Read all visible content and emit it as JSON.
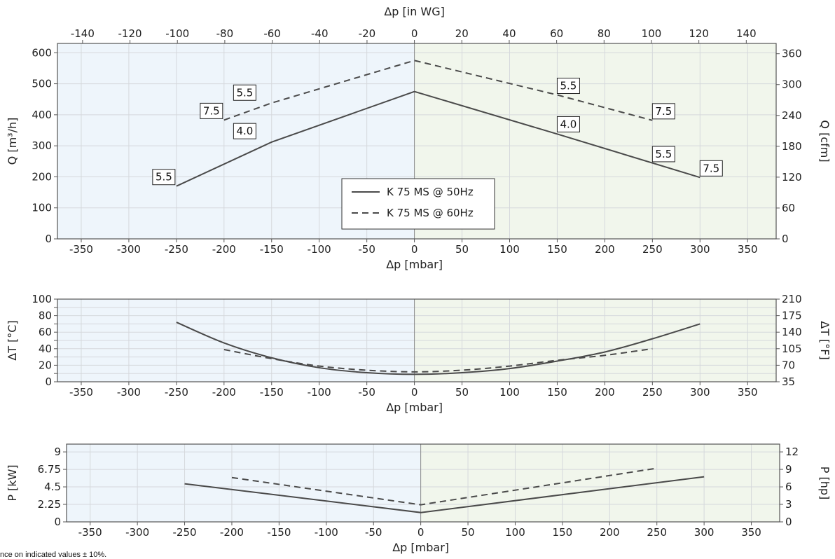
{
  "note": "nce on indicated values ± 10%.",
  "legend": [
    {
      "label": "K 75 MS @ 50Hz",
      "style": "solid"
    },
    {
      "label": "K 75 MS @ 60Hz",
      "style": "dashed"
    }
  ],
  "colors": {
    "line": "#4a4a4a",
    "left_bg": "#eef5fb",
    "right_bg": "#f1f6ec",
    "grid": "#d5d8dc",
    "frame": "#555555"
  },
  "chart_data": [
    {
      "type": "line",
      "xlabel": "Δp [mbar]",
      "ylabel": "Q [m³/h]",
      "xlabel_top": "Δp [in WG]",
      "ylabel_right": "Q [cfm]",
      "xlim": [
        -375,
        380
      ],
      "ylim": [
        0,
        630
      ],
      "x_ticks": [
        -350,
        -300,
        -250,
        -200,
        -150,
        -100,
        -50,
        0,
        50,
        100,
        150,
        200,
        250,
        300,
        350
      ],
      "y_ticks": [
        0,
        100,
        200,
        300,
        400,
        500,
        600
      ],
      "x_top_ticks": [
        -140,
        -120,
        -100,
        -80,
        -60,
        -40,
        -20,
        0,
        20,
        40,
        60,
        80,
        100,
        120,
        140
      ],
      "y_right_ticks": [
        0,
        60,
        120,
        180,
        240,
        300,
        360
      ],
      "grid": true,
      "legend_position": "bottom-center",
      "series": [
        {
          "name": "K 75 MS @ 50Hz",
          "style": "solid",
          "x": [
            -250,
            -150,
            0,
            150,
            300
          ],
          "y": [
            170,
            312,
            475,
            338,
            198
          ]
        },
        {
          "name": "K 75 MS @ 60Hz",
          "style": "dashed",
          "x": [
            -200,
            -150,
            0,
            150,
            250
          ],
          "y": [
            383,
            438,
            575,
            464,
            382
          ]
        }
      ],
      "annotations": [
        {
          "text": "5.5",
          "x": -250,
          "y": 170
        },
        {
          "text": "4.0",
          "x": -165,
          "y": 318
        },
        {
          "text": "7.5",
          "x": -200,
          "y": 383
        },
        {
          "text": "5.5",
          "x": -165,
          "y": 442
        },
        {
          "text": "4.0",
          "x": 150,
          "y": 340
        },
        {
          "text": "5.5",
          "x": 250,
          "y": 244
        },
        {
          "text": "7.5",
          "x": 300,
          "y": 198
        },
        {
          "text": "5.5",
          "x": 150,
          "y": 464
        },
        {
          "text": "7.5",
          "x": 250,
          "y": 382
        }
      ]
    },
    {
      "type": "line",
      "xlabel": "Δp [mbar]",
      "ylabel": "ΔT [°C]",
      "ylabel_right": "ΔT [°F]",
      "xlim": [
        -375,
        380
      ],
      "ylim": [
        0,
        100
      ],
      "x_ticks": [
        -350,
        -300,
        -250,
        -200,
        -150,
        -100,
        -50,
        0,
        50,
        100,
        150,
        200,
        250,
        300,
        350
      ],
      "y_ticks": [
        0,
        10,
        20,
        30,
        40,
        50,
        60,
        70,
        80,
        90,
        100
      ],
      "y_tick_labels": [
        "0",
        "",
        "20",
        "",
        "40",
        "",
        "60",
        "",
        "80",
        "",
        "100"
      ],
      "y_right_ticks": [
        35,
        70,
        105,
        140,
        175,
        210
      ],
      "grid": true,
      "series": [
        {
          "name": "K 75 MS @ 50Hz",
          "style": "solid",
          "x": [
            -250,
            -200,
            -150,
            -100,
            -50,
            0,
            50,
            100,
            150,
            200,
            250,
            300
          ],
          "y": [
            72,
            47,
            29,
            17,
            11,
            9,
            11,
            16,
            25,
            36,
            52,
            70
          ]
        },
        {
          "name": "K 75 MS @ 60Hz",
          "style": "dashed",
          "x": [
            -200,
            -150,
            -100,
            -50,
            0,
            50,
            100,
            150,
            200,
            250
          ],
          "y": [
            39,
            28,
            19,
            14,
            12,
            14,
            19,
            26,
            32,
            40
          ]
        }
      ]
    },
    {
      "type": "line",
      "xlabel": "Δp [mbar]",
      "ylabel": "P [kW]",
      "ylabel_right": "P [hp]",
      "xlim": [
        -375,
        380
      ],
      "ylim": [
        0,
        10
      ],
      "x_ticks": [
        -350,
        -300,
        -250,
        -200,
        -150,
        -100,
        -50,
        0,
        50,
        100,
        150,
        200,
        250,
        300,
        350
      ],
      "y_ticks": [
        0,
        2.25,
        4.5,
        6.75,
        9
      ],
      "y_tick_labels": [
        "0",
        "2.25",
        "4.5",
        "6.75",
        "9"
      ],
      "y_right_ticks": [
        0,
        3,
        6,
        9,
        12
      ],
      "grid": true,
      "series": [
        {
          "name": "K 75 MS @ 50Hz",
          "style": "solid",
          "x": [
            -250,
            0,
            300
          ],
          "y": [
            4.9,
            1.2,
            5.8
          ]
        },
        {
          "name": "K 75 MS @ 60Hz",
          "style": "dashed",
          "x": [
            -200,
            0,
            250
          ],
          "y": [
            5.7,
            2.2,
            6.9
          ]
        }
      ]
    }
  ]
}
